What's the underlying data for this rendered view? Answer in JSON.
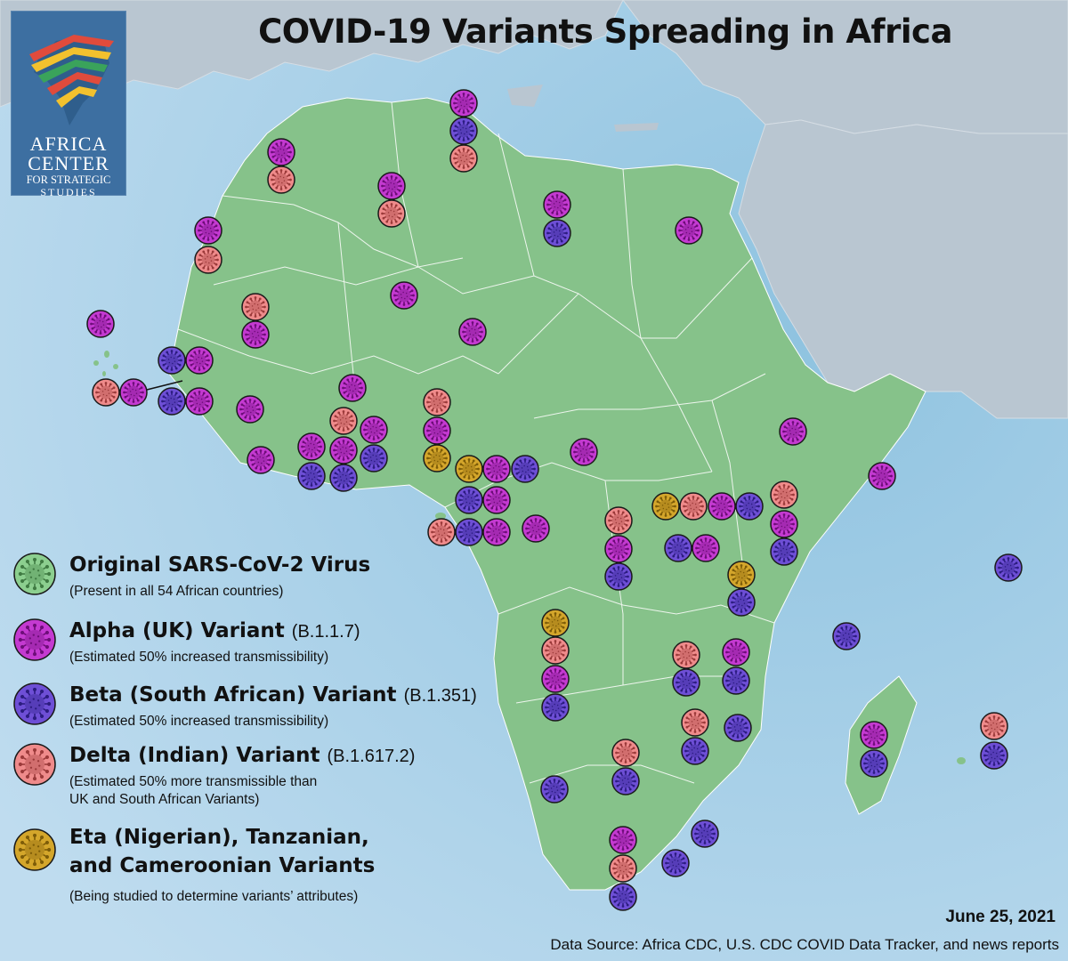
{
  "title": "COVID-19 Variants Spreading in Africa",
  "logo": {
    "line1": "AFRICA",
    "line2": "CENTER",
    "line3": "FOR STRATEGIC",
    "line4": "STUDIES"
  },
  "colors": {
    "ocean": "#a9cfe6",
    "land_africa": "#86c28a",
    "land_other": "#b9c6d1",
    "border": "#ffffff",
    "original": "#8ccf8f",
    "alpha": "#c43ad1",
    "beta": "#6e4fd6",
    "delta": "#ef8b8b",
    "eta": "#d4a62b"
  },
  "legend": [
    {
      "key": "original",
      "name": "Original SARS-CoV-2 Virus",
      "code": "",
      "notes": [
        "(Present in all 54 African countries)"
      ]
    },
    {
      "key": "alpha",
      "name": "Alpha (UK) Variant",
      "code": "(B.1.1.7)",
      "notes": [
        "(Estimated 50% increased transmissibility)"
      ]
    },
    {
      "key": "beta",
      "name": "Beta (South African) Variant",
      "code": "(B.1.351)",
      "notes": [
        "(Estimated 50% increased transmissibility)"
      ]
    },
    {
      "key": "delta",
      "name": "Delta (Indian) Variant",
      "code": "(B.1.617.2)",
      "notes": [
        "(Estimated 50% more transmissible than",
        "UK and South African Variants)"
      ]
    },
    {
      "key": "eta",
      "name": "Eta (Nigerian), Tanzanian,",
      "name2": "and Cameroonian Variants",
      "code": "",
      "notes": [
        "(Being studied to determine variants’ attributes)"
      ]
    }
  ],
  "date": "June 25, 2021",
  "source": "Data Source: Africa CDC, U.S. CDC COVID Data Tracker, and news reports",
  "markers": [
    {
      "country": "Tunisia",
      "variants": [
        "alpha",
        "beta",
        "delta"
      ]
    },
    {
      "country": "Morocco",
      "variants": [
        "alpha",
        "delta"
      ]
    },
    {
      "country": "Algeria",
      "variants": [
        "alpha",
        "delta"
      ]
    },
    {
      "country": "Libya",
      "variants": [
        "alpha",
        "beta"
      ]
    },
    {
      "country": "Egypt",
      "variants": [
        "alpha"
      ]
    },
    {
      "country": "Western Sahara",
      "variants": [
        "alpha",
        "delta"
      ]
    },
    {
      "country": "Mauritania",
      "variants": [
        "delta",
        "alpha"
      ]
    },
    {
      "country": "Mali",
      "variants": [
        "alpha"
      ]
    },
    {
      "country": "Niger",
      "variants": [
        "alpha"
      ]
    },
    {
      "country": "Cabo Verde",
      "variants": [
        "alpha"
      ]
    },
    {
      "country": "Senegal",
      "variants": [
        "beta",
        "alpha"
      ]
    },
    {
      "country": "Gambia",
      "variants": [
        "delta",
        "alpha"
      ]
    },
    {
      "country": "Guinea-Bissau",
      "variants": [
        "beta",
        "alpha"
      ]
    },
    {
      "country": "Guinea",
      "variants": [
        "alpha"
      ]
    },
    {
      "country": "Sierra Leone",
      "variants": [
        "alpha"
      ]
    },
    {
      "country": "Burkina Faso",
      "variants": [
        "alpha"
      ]
    },
    {
      "country": "Liberia",
      "variants": [
        "alpha",
        "beta"
      ]
    },
    {
      "country": "Cote d'Ivoire",
      "variants": [
        "delta",
        "alpha",
        "beta"
      ]
    },
    {
      "country": "Ghana",
      "variants": [
        "alpha",
        "beta"
      ]
    },
    {
      "country": "Togo",
      "variants": [
        "delta",
        "alpha",
        "eta"
      ]
    },
    {
      "country": "Nigeria",
      "variants": [
        "eta",
        "alpha",
        "beta"
      ]
    },
    {
      "country": "Cameroon",
      "variants": [
        "beta",
        "alpha"
      ]
    },
    {
      "country": "Central African Republic",
      "variants": [
        "alpha"
      ]
    },
    {
      "country": "Sudan",
      "variants": []
    },
    {
      "country": "Ethiopia",
      "variants": [
        "alpha"
      ]
    },
    {
      "country": "Somalia",
      "variants": [
        "alpha"
      ]
    },
    {
      "country": "Chad",
      "variants": [
        "alpha"
      ]
    },
    {
      "country": "Equatorial Guinea",
      "variants": [
        "delta",
        "beta",
        "alpha"
      ]
    },
    {
      "country": "Gabon",
      "variants": [
        "alpha"
      ]
    },
    {
      "country": "Congo",
      "variants": []
    },
    {
      "country": "DR Congo",
      "variants": [
        "delta",
        "alpha",
        "beta"
      ]
    },
    {
      "country": "Uganda",
      "variants": [
        "eta",
        "delta",
        "alpha",
        "beta"
      ]
    },
    {
      "country": "Kenya",
      "variants": [
        "delta",
        "alpha",
        "beta"
      ]
    },
    {
      "country": "Rwanda",
      "variants": [
        "beta",
        "alpha"
      ]
    },
    {
      "country": "Tanzania",
      "variants": [
        "eta",
        "beta"
      ]
    },
    {
      "country": "Seychelles",
      "variants": [
        "beta"
      ]
    },
    {
      "country": "Comoros",
      "variants": [
        "beta"
      ]
    },
    {
      "country": "Angola",
      "variants": [
        "eta",
        "delta",
        "alpha",
        "beta"
      ]
    },
    {
      "country": "Zambia",
      "variants": [
        "delta",
        "beta"
      ]
    },
    {
      "country": "Malawi",
      "variants": [
        "alpha",
        "beta"
      ]
    },
    {
      "country": "Mozambique",
      "variants": [
        "delta",
        "beta",
        "beta"
      ]
    },
    {
      "country": "Madagascar",
      "variants": [
        "alpha",
        "beta"
      ]
    },
    {
      "country": "Mauritius",
      "variants": [
        "delta",
        "beta"
      ]
    },
    {
      "country": "Namibia",
      "variants": [
        "beta"
      ]
    },
    {
      "country": "Botswana",
      "variants": [
        "delta",
        "beta"
      ]
    },
    {
      "country": "Zimbabwe",
      "variants": []
    },
    {
      "country": "Eswatini",
      "variants": [
        "beta"
      ]
    },
    {
      "country": "Lesotho",
      "variants": [
        "beta"
      ]
    },
    {
      "country": "South Africa",
      "variants": [
        "alpha",
        "delta",
        "beta"
      ]
    }
  ]
}
